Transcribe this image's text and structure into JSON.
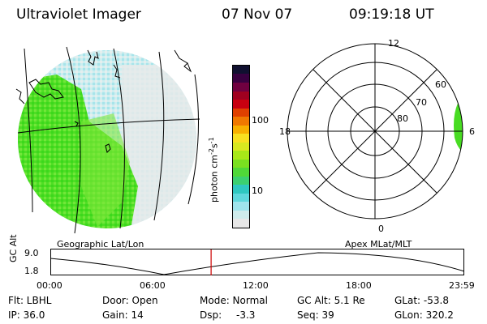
{
  "header": {
    "title": "Ultraviolet Imager",
    "date": "07 Nov 07",
    "time": "09:19:18 UT"
  },
  "left_panel": {
    "caption": "Geographic Lat/Lon"
  },
  "right_panel": {
    "caption": "Apex MLat/MLT",
    "mlt_labels": {
      "top": "12",
      "left": "18",
      "right": "6",
      "bottom": "0"
    },
    "lat_labels": [
      "60",
      "70",
      "80"
    ]
  },
  "colorbar": {
    "unit_label": "photon cm",
    "unit_exp1": "-2",
    "unit_mid": "s",
    "unit_exp2": "-1",
    "tick_100": "100",
    "tick_10": "10",
    "colors": [
      "#e8e8e8",
      "#cfecec",
      "#9fe4ec",
      "#5fd8dc",
      "#2fc8c0",
      "#3cd070",
      "#50d838",
      "#7ae020",
      "#a8e818",
      "#d8e820",
      "#f8e020",
      "#f8b000",
      "#f07800",
      "#e04000",
      "#c80010",
      "#a00020",
      "#700040",
      "#380040",
      "#101030"
    ]
  },
  "timeline": {
    "axis_label": "GC Alt",
    "y_max": "9.0",
    "y_min": "1.8",
    "x_ticks": [
      "00:00",
      "06:00",
      "12:00",
      "18:00",
      "23:59"
    ],
    "current_time": "09:19:18",
    "current_fraction": 0.388,
    "marker_color": "#cc0000"
  },
  "footer": {
    "filter": "Flt: LBHL",
    "ip": "IP: 36.0",
    "door": "Door: Open",
    "gain": "Gain: 14",
    "mode": "Mode: Normal",
    "dsp_label": "Dsp:",
    "dsp_value": "-3.3",
    "gc_alt": "GC Alt: 5.1 Re",
    "seq": "Seq: 39",
    "glat": "GLat: -53.8",
    "glon": "GLon: 320.2"
  },
  "colors": {
    "green": "#44dd22",
    "light_green": "#7fe83a",
    "cyan": "#9ae6ec",
    "pale": "#dcecec"
  }
}
